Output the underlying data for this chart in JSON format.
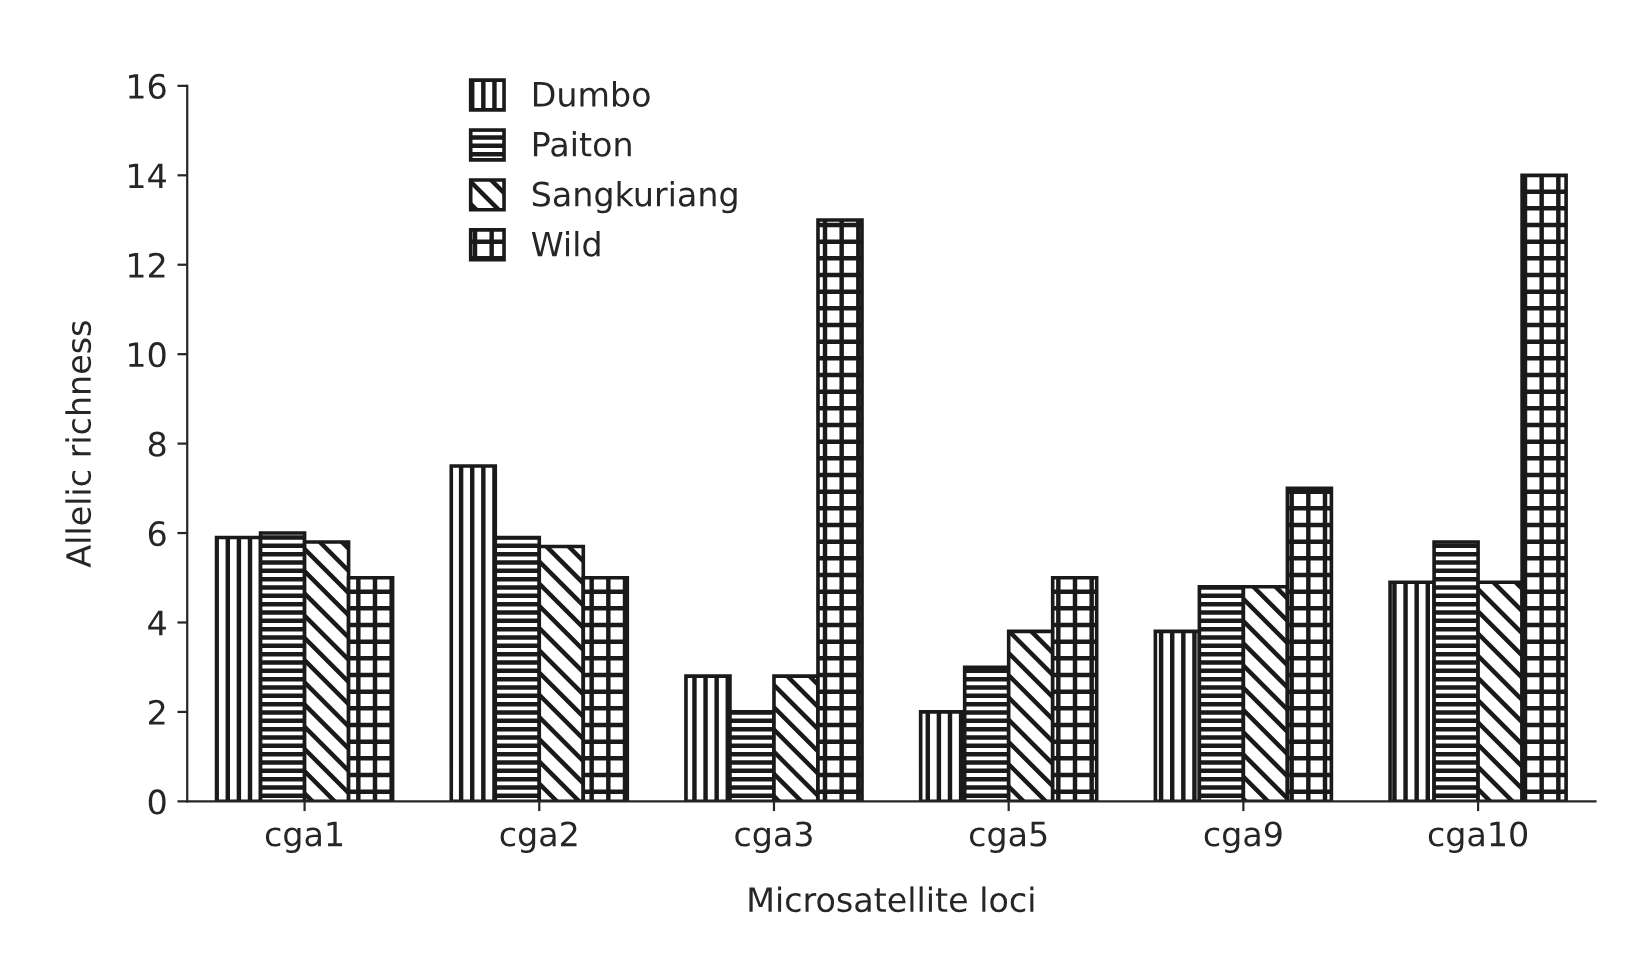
{
  "chart_data": {
    "type": "bar",
    "xlabel": "Microsatellite loci",
    "ylabel": "Allelic richness",
    "categories": [
      "cga1",
      "cga2",
      "cga3",
      "cga5",
      "cga9",
      "cga10"
    ],
    "series": [
      {
        "name": "Dumbo",
        "color": "#1a1a1a",
        "values": [
          5.9,
          7.5,
          2.8,
          2.0,
          3.8,
          4.9
        ]
      },
      {
        "name": "Paiton",
        "color": "#1a1a1a",
        "values": [
          6.0,
          5.9,
          2.0,
          3.0,
          4.8,
          5.8
        ]
      },
      {
        "name": "Sangkuriang",
        "color": "#1a1a1a",
        "values": [
          5.8,
          5.7,
          2.8,
          3.8,
          4.8,
          4.9
        ]
      },
      {
        "name": "Wild",
        "color": "#1a1a1a",
        "values": [
          5.0,
          5.0,
          13.0,
          5.0,
          7.0,
          14.0
        ]
      }
    ],
    "ylim": [
      0,
      16
    ],
    "yticks": [
      0,
      2,
      4,
      6,
      8,
      10,
      12,
      14,
      16
    ],
    "grid": false,
    "legend": "top left"
  }
}
